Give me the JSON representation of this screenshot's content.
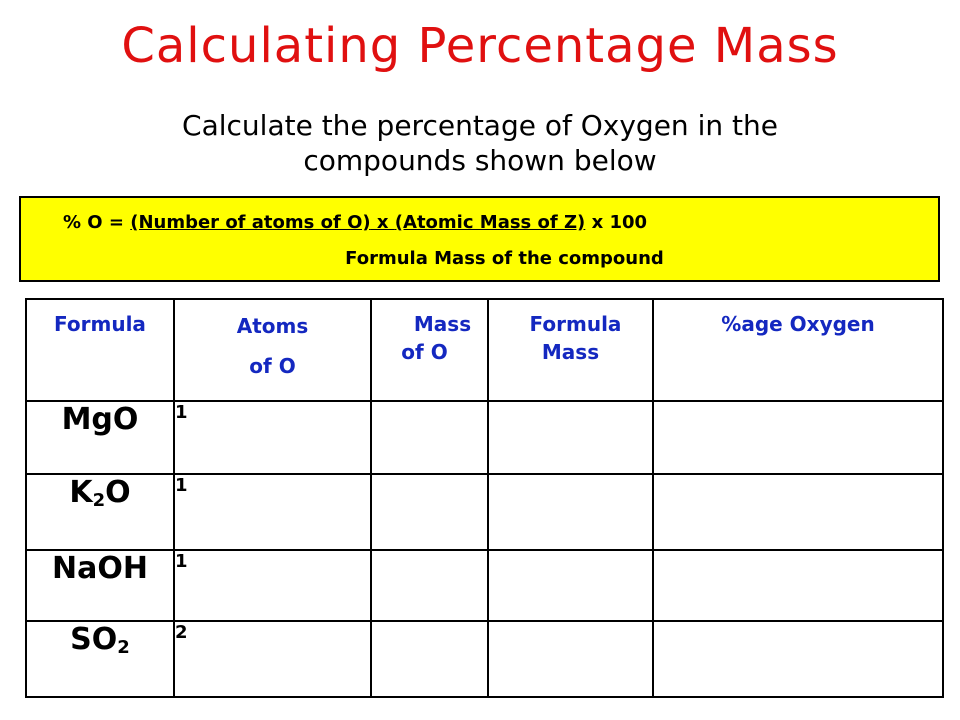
{
  "title": "Calculating Percentage Mass",
  "subtitle": {
    "line1": "Calculate the percentage of Oxygen in the",
    "line2": "compounds shown below"
  },
  "formula_box": {
    "prefix": "% O = ",
    "numerator_part1": "(Number of atoms of O)",
    "times": " x ",
    "numerator_part2": "(Atomic Mass of Z)",
    "multiplier": " x 100",
    "denominator": "Formula Mass of the compound",
    "background": "#ffff00"
  },
  "table": {
    "headers": {
      "formula": "Formula",
      "atoms_line1": "Atoms",
      "atoms_line2": "of O",
      "mass_line1": "Mass",
      "mass_line2": "of O",
      "formula_mass_line1": "Formula",
      "formula_mass_line2": "Mass",
      "percent": "%age Oxygen"
    },
    "rows": [
      {
        "formula_main": "MgO",
        "formula_sub": "",
        "formula_tail": "",
        "atoms": "1",
        "mass": "",
        "formula_mass": "",
        "percent": ""
      },
      {
        "formula_main": "K",
        "formula_sub": "2",
        "formula_tail": "O",
        "atoms": "1",
        "mass": "",
        "formula_mass": "",
        "percent": ""
      },
      {
        "formula_main": "NaOH",
        "formula_sub": "",
        "formula_tail": "",
        "atoms": "1",
        "mass": "",
        "formula_mass": "",
        "percent": ""
      },
      {
        "formula_main": "SO",
        "formula_sub": "2",
        "formula_tail": "",
        "atoms": "2",
        "mass": "",
        "formula_mass": "",
        "percent": ""
      }
    ]
  },
  "colors": {
    "title": "#e01010",
    "header_text": "#1428c0",
    "box": "#ffff00"
  }
}
